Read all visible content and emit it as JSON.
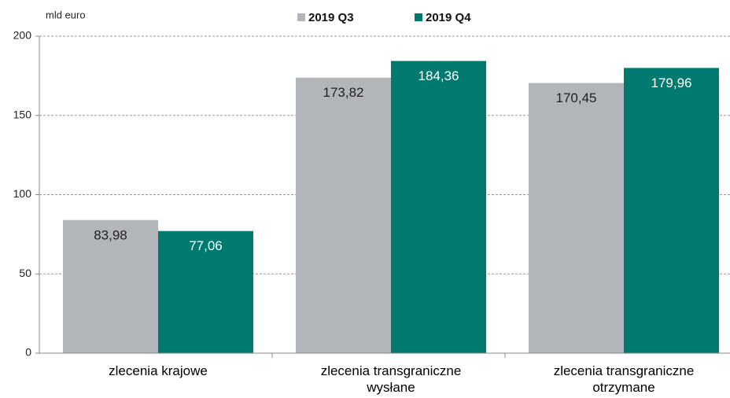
{
  "chart_data": {
    "type": "bar",
    "y_label": "mld euro",
    "categories": [
      "zlecenia krajowe",
      "zlecenia transgraniczne wysłane",
      "zlecenia transgraniczne otrzymane"
    ],
    "series": [
      {
        "name": "2019 Q3",
        "color": "#b2b5b9",
        "label_color": "#222222",
        "values": [
          83.98,
          173.82,
          170.45
        ],
        "value_labels": [
          "83,98",
          "173,82",
          "170,45"
        ]
      },
      {
        "name": "2019 Q4",
        "color": "#007a6e",
        "label_color": "#ffffff",
        "values": [
          77.06,
          184.36,
          179.96
        ],
        "value_labels": [
          "77,06",
          "184,36",
          "179,96"
        ]
      }
    ],
    "ylim": [
      0,
      200
    ],
    "yticks": [
      0,
      50,
      100,
      150,
      200
    ],
    "grid": true,
    "legend": "top"
  }
}
